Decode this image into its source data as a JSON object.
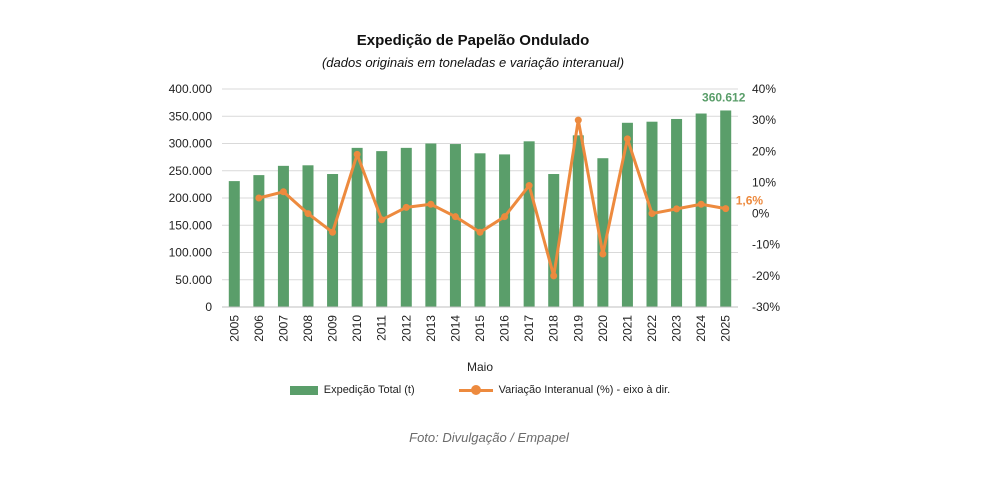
{
  "header": {
    "title": "Expedição de Papelão Ondulado",
    "subtitle": "(dados originais em toneladas e variação interanual)"
  },
  "caption": "Foto: Divulgação / Empapel",
  "legend": {
    "bars_label": "Expedição Total (t)",
    "line_label": "Variação Interanual (%) - eixo à dir."
  },
  "colors": {
    "bar": "#5a9e6a",
    "line": "#ed8a3e",
    "bar_label": "#5a9e6a",
    "line_label": "#ed8a3e",
    "grid": "#d9d9d9"
  },
  "chart_data": {
    "type": "bar",
    "xlabel": "Maio",
    "categories": [
      "2005",
      "2006",
      "2007",
      "2008",
      "2009",
      "2010",
      "2011",
      "2012",
      "2013",
      "2014",
      "2015",
      "2016",
      "2017",
      "2018",
      "2019",
      "2020",
      "2021",
      "2022",
      "2023",
      "2024",
      "2025"
    ],
    "series": [
      {
        "name": "Expedição Total (t)",
        "type": "bar",
        "axis": "left",
        "values": [
          231000,
          242000,
          259000,
          260000,
          244000,
          292000,
          286000,
          292000,
          300000,
          299000,
          282000,
          280000,
          304000,
          244000,
          315000,
          273000,
          338000,
          340000,
          345000,
          355000,
          360612
        ]
      },
      {
        "name": "Variação Interanual (%) - eixo à dir.",
        "type": "line",
        "axis": "right",
        "values": [
          null,
          5,
          7,
          0,
          -6,
          19,
          -2,
          2,
          3,
          -1,
          -6,
          -1,
          9,
          -20,
          30,
          -13,
          24,
          0,
          1.5,
          3,
          1.6
        ]
      }
    ],
    "left_axis": {
      "ylim": [
        0,
        400000
      ],
      "ticks": [
        "0",
        "50.000",
        "100.000",
        "150.000",
        "200.000",
        "250.000",
        "300.000",
        "350.000",
        "400.000"
      ]
    },
    "right_axis": {
      "ylim": [
        -30,
        40
      ],
      "ticks": [
        "-30%",
        "-20%",
        "-10%",
        "0%",
        "10%",
        "20%",
        "30%",
        "40%"
      ]
    },
    "annotations": {
      "last_bar_value": "360.612",
      "last_line_value": "1,6%"
    },
    "grid": true
  }
}
